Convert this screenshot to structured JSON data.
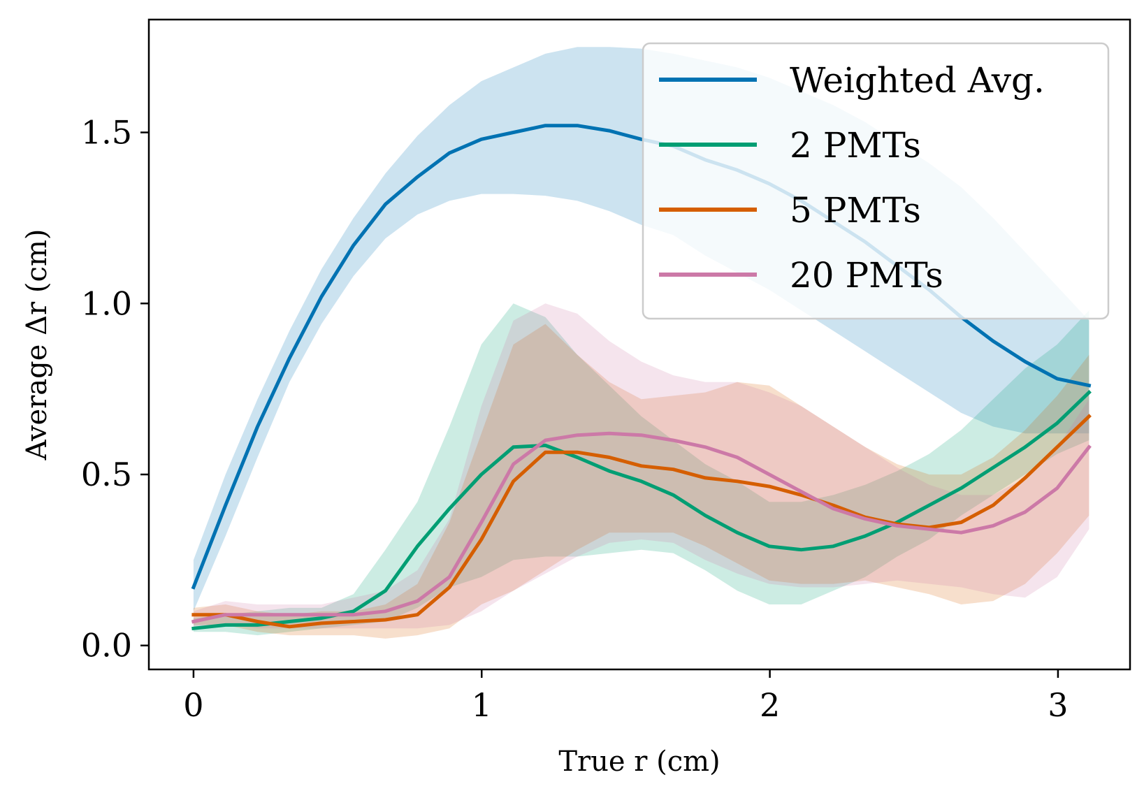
{
  "chart_data": {
    "type": "line",
    "title": "",
    "xlabel": "True r (cm)",
    "ylabel": "Average Δr (cm)",
    "xlim": [
      -0.155,
      3.25
    ],
    "ylim": [
      -0.07,
      1.83
    ],
    "xticks": [
      0,
      1,
      2,
      3
    ],
    "yticks": [
      0.0,
      0.5,
      1.0,
      1.5
    ],
    "xtick_labels": [
      "0",
      "1",
      "2",
      "3"
    ],
    "ytick_labels": [
      "0.0",
      "0.5",
      "1.0",
      "1.5"
    ],
    "grid": false,
    "legend_position": "top-right",
    "x": [
      0,
      0.111,
      0.222,
      0.333,
      0.444,
      0.555,
      0.666,
      0.777,
      0.888,
      0.999,
      1.11,
      1.221,
      1.332,
      1.443,
      1.554,
      1.665,
      1.776,
      1.887,
      1.998,
      2.109,
      2.22,
      2.331,
      2.442,
      2.553,
      2.664,
      2.775,
      2.886,
      2.997,
      3.108
    ],
    "series": [
      {
        "name": "Weighted Avg.",
        "color": "#0072b2",
        "values": [
          0.17,
          0.41,
          0.64,
          0.84,
          1.02,
          1.17,
          1.29,
          1.37,
          1.44,
          1.48,
          1.5,
          1.52,
          1.52,
          1.505,
          1.48,
          1.46,
          1.42,
          1.39,
          1.35,
          1.3,
          1.24,
          1.18,
          1.11,
          1.04,
          0.96,
          0.89,
          0.83,
          0.78,
          0.76
        ],
        "upper": [
          0.25,
          0.5,
          0.72,
          0.92,
          1.1,
          1.25,
          1.38,
          1.49,
          1.58,
          1.65,
          1.69,
          1.73,
          1.75,
          1.75,
          1.745,
          1.73,
          1.71,
          1.69,
          1.66,
          1.62,
          1.58,
          1.53,
          1.47,
          1.41,
          1.34,
          1.25,
          1.15,
          1.05,
          0.95
        ],
        "lower": [
          0.1,
          0.32,
          0.55,
          0.77,
          0.94,
          1.08,
          1.19,
          1.26,
          1.3,
          1.32,
          1.32,
          1.315,
          1.3,
          1.27,
          1.23,
          1.2,
          1.14,
          1.09,
          1.04,
          0.98,
          0.92,
          0.86,
          0.8,
          0.74,
          0.68,
          0.64,
          0.62,
          0.62,
          0.62
        ]
      },
      {
        "name": "2 PMTs",
        "color": "#009e73",
        "values": [
          0.05,
          0.06,
          0.06,
          0.07,
          0.08,
          0.1,
          0.16,
          0.29,
          0.4,
          0.5,
          0.58,
          0.585,
          0.55,
          0.51,
          0.48,
          0.44,
          0.38,
          0.33,
          0.29,
          0.28,
          0.29,
          0.32,
          0.36,
          0.41,
          0.46,
          0.52,
          0.58,
          0.65,
          0.74
        ],
        "upper": [
          0.08,
          0.09,
          0.1,
          0.11,
          0.11,
          0.15,
          0.28,
          0.42,
          0.64,
          0.88,
          1.0,
          0.96,
          0.85,
          0.76,
          0.67,
          0.6,
          0.53,
          0.48,
          0.42,
          0.42,
          0.44,
          0.47,
          0.51,
          0.56,
          0.63,
          0.72,
          0.81,
          0.88,
          0.98
        ],
        "lower": [
          0.04,
          0.04,
          0.03,
          0.04,
          0.05,
          0.06,
          0.07,
          0.11,
          0.17,
          0.2,
          0.25,
          0.26,
          0.26,
          0.27,
          0.28,
          0.27,
          0.22,
          0.16,
          0.12,
          0.12,
          0.16,
          0.2,
          0.26,
          0.31,
          0.38,
          0.44,
          0.5,
          0.56,
          0.6
        ]
      },
      {
        "name": "5 PMTs",
        "color": "#d55e00",
        "values": [
          0.09,
          0.09,
          0.07,
          0.055,
          0.065,
          0.07,
          0.075,
          0.09,
          0.17,
          0.31,
          0.48,
          0.565,
          0.565,
          0.55,
          0.525,
          0.515,
          0.49,
          0.48,
          0.465,
          0.44,
          0.41,
          0.375,
          0.355,
          0.345,
          0.36,
          0.41,
          0.49,
          0.58,
          0.67
        ],
        "upper": [
          0.11,
          0.12,
          0.1,
          0.09,
          0.1,
          0.1,
          0.12,
          0.18,
          0.36,
          0.62,
          0.88,
          0.94,
          0.85,
          0.77,
          0.72,
          0.73,
          0.74,
          0.77,
          0.76,
          0.7,
          0.64,
          0.58,
          0.53,
          0.5,
          0.5,
          0.55,
          0.63,
          0.73,
          0.85
        ],
        "lower": [
          0.06,
          0.06,
          0.04,
          0.03,
          0.03,
          0.03,
          0.02,
          0.03,
          0.05,
          0.12,
          0.16,
          0.22,
          0.28,
          0.33,
          0.33,
          0.33,
          0.29,
          0.24,
          0.19,
          0.18,
          0.18,
          0.19,
          0.17,
          0.15,
          0.12,
          0.13,
          0.18,
          0.27,
          0.38
        ]
      },
      {
        "name": "20 PMTs",
        "color": "#cc79a7",
        "values": [
          0.07,
          0.09,
          0.09,
          0.09,
          0.09,
          0.09,
          0.1,
          0.13,
          0.2,
          0.36,
          0.53,
          0.6,
          0.615,
          0.62,
          0.615,
          0.6,
          0.58,
          0.55,
          0.5,
          0.45,
          0.4,
          0.37,
          0.35,
          0.34,
          0.33,
          0.35,
          0.39,
          0.46,
          0.58
        ],
        "upper": [
          0.1,
          0.13,
          0.12,
          0.12,
          0.12,
          0.14,
          0.16,
          0.22,
          0.37,
          0.7,
          0.95,
          1.0,
          0.97,
          0.89,
          0.83,
          0.79,
          0.77,
          0.77,
          0.74,
          0.7,
          0.64,
          0.58,
          0.52,
          0.47,
          0.44,
          0.44,
          0.49,
          0.58,
          0.72
        ],
        "lower": [
          0.05,
          0.06,
          0.05,
          0.05,
          0.05,
          0.05,
          0.05,
          0.05,
          0.06,
          0.1,
          0.16,
          0.21,
          0.26,
          0.3,
          0.31,
          0.3,
          0.25,
          0.21,
          0.18,
          0.17,
          0.17,
          0.18,
          0.19,
          0.18,
          0.17,
          0.15,
          0.14,
          0.2,
          0.34
        ]
      }
    ]
  }
}
